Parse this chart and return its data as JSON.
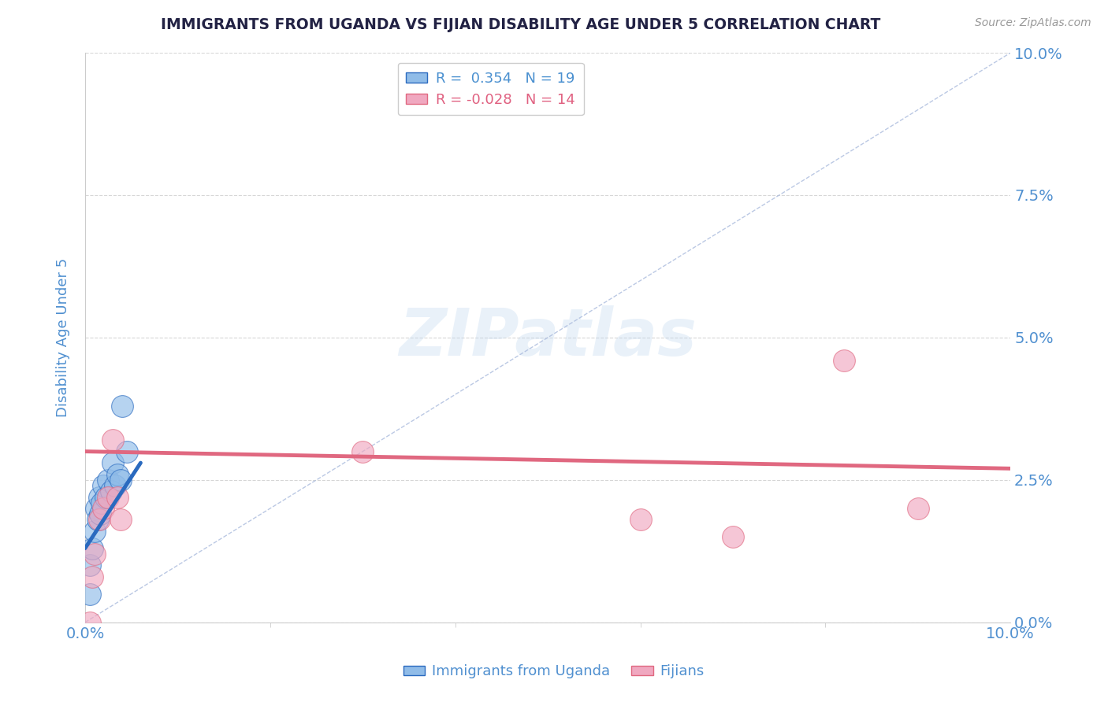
{
  "title": "IMMIGRANTS FROM UGANDA VS FIJIAN DISABILITY AGE UNDER 5 CORRELATION CHART",
  "source": "Source: ZipAtlas.com",
  "ylabel": "Disability Age Under 5",
  "xlim": [
    0.0,
    0.1
  ],
  "ylim": [
    0.0,
    0.1
  ],
  "legend_entries": [
    {
      "label": "R =  0.354   N = 19",
      "color": "#a8c8f0",
      "text_color": "#4a90d0"
    },
    {
      "label": "R = -0.028   N = 14",
      "color": "#f5b8c8",
      "text_color": "#e06080"
    }
  ],
  "legend_label1": "Immigrants from Uganda",
  "legend_label2": "Fijians",
  "blue_scatter": [
    [
      0.0005,
      0.01
    ],
    [
      0.0008,
      0.013
    ],
    [
      0.001,
      0.016
    ],
    [
      0.0012,
      0.02
    ],
    [
      0.0014,
      0.018
    ],
    [
      0.0015,
      0.022
    ],
    [
      0.0016,
      0.019
    ],
    [
      0.0018,
      0.021
    ],
    [
      0.002,
      0.024
    ],
    [
      0.0022,
      0.022
    ],
    [
      0.0025,
      0.025
    ],
    [
      0.0028,
      0.023
    ],
    [
      0.003,
      0.028
    ],
    [
      0.0032,
      0.024
    ],
    [
      0.0035,
      0.026
    ],
    [
      0.0038,
      0.025
    ],
    [
      0.004,
      0.038
    ],
    [
      0.0045,
      0.03
    ],
    [
      0.0005,
      0.005
    ]
  ],
  "pink_scatter": [
    [
      0.0005,
      0.0
    ],
    [
      0.0008,
      0.008
    ],
    [
      0.001,
      0.012
    ],
    [
      0.0015,
      0.018
    ],
    [
      0.002,
      0.02
    ],
    [
      0.0025,
      0.022
    ],
    [
      0.003,
      0.032
    ],
    [
      0.0035,
      0.022
    ],
    [
      0.0038,
      0.018
    ],
    [
      0.03,
      0.03
    ],
    [
      0.06,
      0.018
    ],
    [
      0.07,
      0.015
    ],
    [
      0.082,
      0.046
    ],
    [
      0.09,
      0.02
    ]
  ],
  "blue_line_x": [
    0.0,
    0.006
  ],
  "blue_line_y_start": 0.013,
  "blue_line_y_end": 0.028,
  "pink_line_x": [
    0.0,
    0.1
  ],
  "pink_line_y_start": 0.03,
  "pink_line_y_end": 0.027,
  "ref_line_x": [
    0.0,
    0.1
  ],
  "ref_line_y": [
    0.0,
    0.1
  ],
  "y_ticks": [
    0.0,
    0.025,
    0.05,
    0.075,
    0.1
  ],
  "y_tick_labels": [
    "0.0%",
    "2.5%",
    "5.0%",
    "7.5%",
    "10.0%"
  ],
  "x_left_label": "0.0%",
  "x_right_label": "10.0%",
  "watermark": "ZIPatlas",
  "title_color": "#222244",
  "blue_color": "#90bce8",
  "pink_color": "#f0a8c0",
  "blue_line_color": "#2a6abf",
  "pink_line_color": "#e06880",
  "axis_color": "#5090d0",
  "grid_color": "#cccccc",
  "background_color": "#ffffff"
}
